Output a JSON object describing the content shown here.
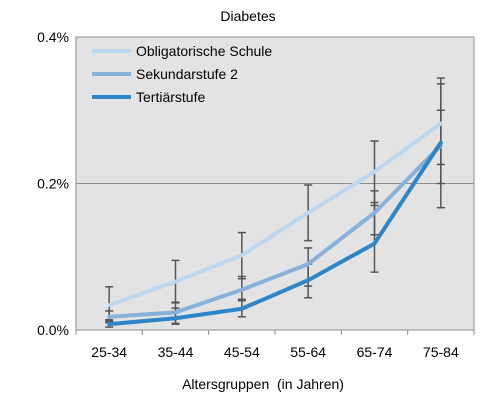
{
  "chart_data": {
    "type": "line",
    "title": "Diabetes",
    "xlabel": "Altersgruppen  (in Jahren)",
    "ylabel": "",
    "categories": [
      "25-34",
      "35-44",
      "45-54",
      "55-64",
      "65-74",
      "75-84"
    ],
    "ylim": [
      0,
      0.4
    ],
    "yticks": [
      0,
      0.2,
      0.4
    ],
    "ytick_labels": [
      "0.0%",
      "0.2%",
      "0.4%"
    ],
    "grid": true,
    "legend_position": "top-left",
    "series": [
      {
        "name": "Obligatorische Schule",
        "color": "#bdd7ee",
        "values": [
          0.034,
          0.066,
          0.102,
          0.16,
          0.216,
          0.282
        ],
        "err_low": [
          0.012,
          0.038,
          0.07,
          0.122,
          0.17,
          0.226
        ],
        "err_high": [
          0.059,
          0.095,
          0.133,
          0.198,
          0.258,
          0.344
        ]
      },
      {
        "name": "Sekundarstufe 2",
        "color": "#87b0db",
        "values": [
          0.018,
          0.024,
          0.055,
          0.09,
          0.16,
          0.252
        ],
        "err_low": [
          0.01,
          0.009,
          0.04,
          0.06,
          0.13,
          0.2
        ],
        "err_high": [
          0.026,
          0.037,
          0.073,
          0.112,
          0.19,
          0.3
        ]
      },
      {
        "name": "Tertiärstufe",
        "color": "#2e86c8",
        "values": [
          0.008,
          0.016,
          0.029,
          0.068,
          0.118,
          0.256
        ],
        "err_low": [
          0.004,
          0.008,
          0.018,
          0.044,
          0.079,
          0.167
        ],
        "err_high": [
          0.014,
          0.03,
          0.042,
          0.09,
          0.174,
          0.336
        ]
      }
    ]
  }
}
